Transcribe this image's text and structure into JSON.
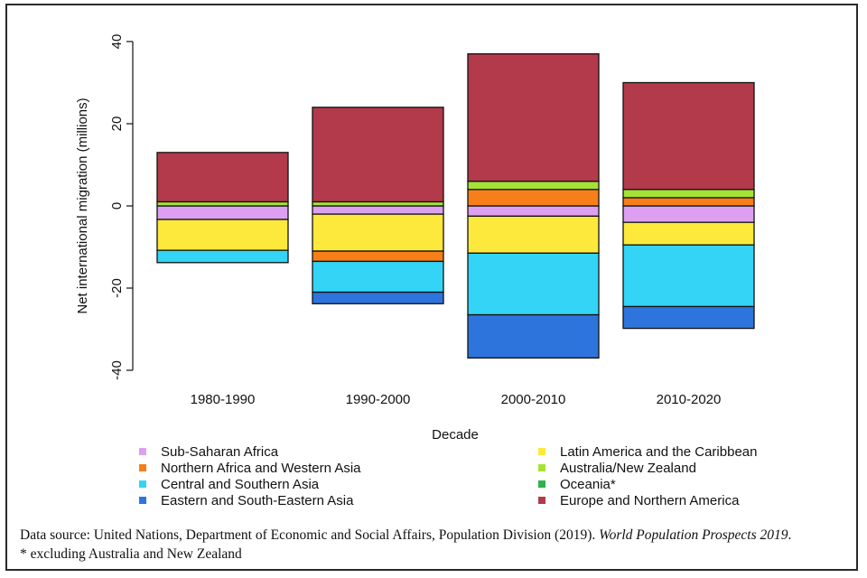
{
  "chart_data": {
    "type": "bar",
    "stacked": true,
    "title": "",
    "xlabel": "Decade",
    "ylabel": "Net international migration (millions)",
    "ylim": [
      -40,
      40
    ],
    "yticks": [
      -40,
      -20,
      0,
      20,
      40
    ],
    "categories": [
      "1980-1990",
      "1990-2000",
      "2000-2010",
      "2010-2020"
    ],
    "series": [
      {
        "name": "Sub-Saharan Africa",
        "color": "#dda0f0",
        "values": [
          -3.3,
          -2.0,
          -2.5,
          -4.0
        ]
      },
      {
        "name": "Latin America and the Caribbean",
        "color": "#fde93b",
        "values": [
          -7.5,
          -9.0,
          -9.0,
          -5.5
        ]
      },
      {
        "name": "Northern Africa and Western Asia",
        "color": "#f77f19",
        "values": [
          0.0,
          -2.5,
          4.0,
          2.0
        ]
      },
      {
        "name": "Australia/New Zealand",
        "color": "#a5e236",
        "values": [
          1.0,
          1.0,
          2.0,
          2.0
        ]
      },
      {
        "name": "Central and Southern Asia",
        "color": "#33d4f5",
        "values": [
          -3.0,
          -7.5,
          -15.0,
          -15.0
        ]
      },
      {
        "name": "Oceania*",
        "color": "#2bb24c",
        "values": [
          0.0,
          0.0,
          0.0,
          0.0
        ]
      },
      {
        "name": "Eastern and South-Eastern Asia",
        "color": "#2e74dd",
        "values": [
          0.0,
          -2.8,
          -10.5,
          -5.3
        ]
      },
      {
        "name": "Europe and Northern America",
        "color": "#b23a4b",
        "values": [
          12.0,
          23.0,
          31.0,
          26.0
        ]
      }
    ]
  },
  "footnote": {
    "source_prefix": "Data source: United Nations, Department of Economic and Social Affairs, Population Division (2019). ",
    "source_title": "World Population Prospects 2019",
    "source_suffix": ".",
    "note": "* excluding Australia and New Zealand"
  }
}
